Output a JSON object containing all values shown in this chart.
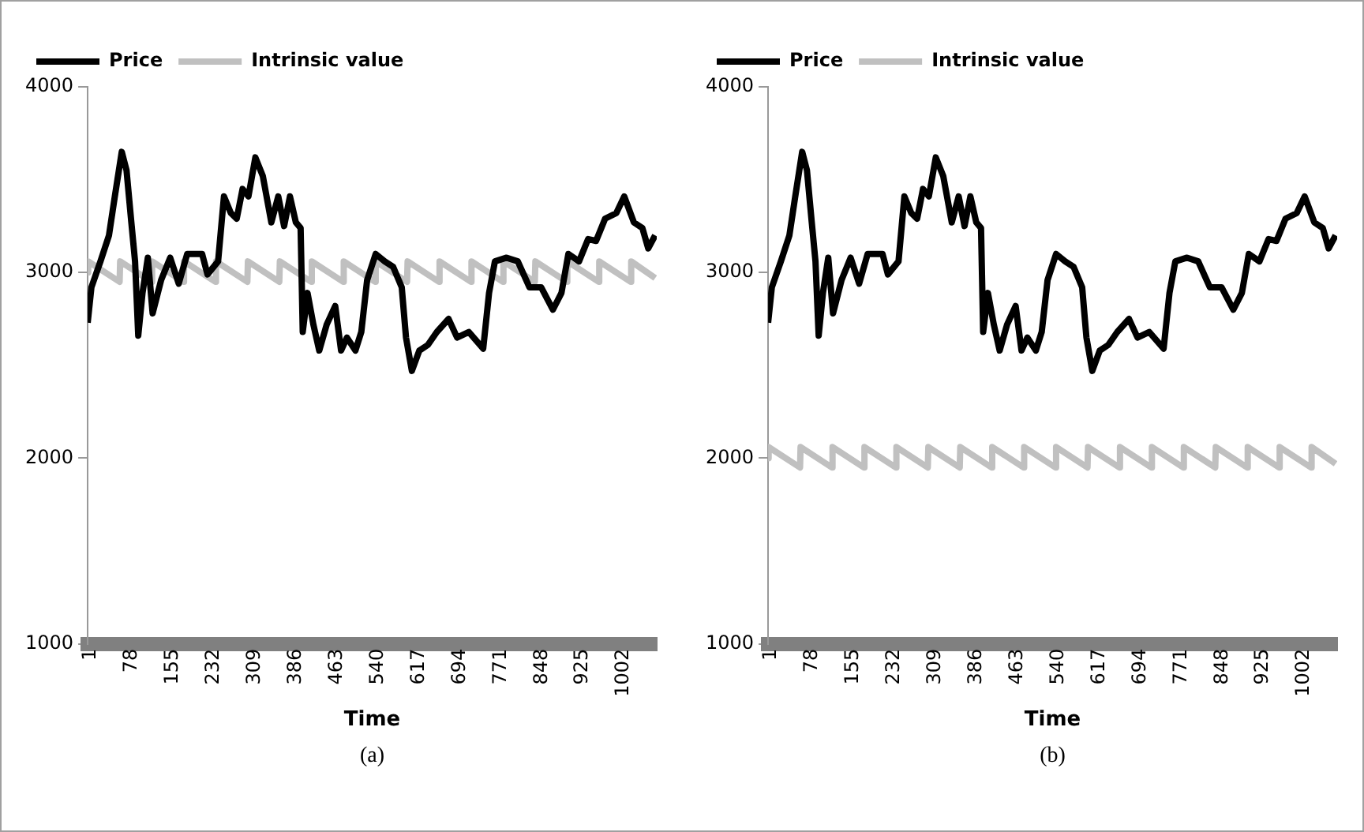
{
  "chart_data": [
    {
      "type": "line",
      "xlabel": "Time",
      "annotations": [
        "(a)"
      ],
      "legend": "top",
      "grid": false,
      "marker": "none",
      "line_style": "solid",
      "xlim": [
        1,
        1070
      ],
      "xticks": [
        1,
        78,
        155,
        232,
        309,
        386,
        463,
        540,
        617,
        694,
        771,
        848,
        925,
        1002
      ],
      "ylim": [
        1000,
        4000
      ],
      "yticks": [
        1000,
        2000,
        3000,
        4000
      ],
      "series": [
        {
          "name": "Price",
          "color": "#000000",
          "x": [
            1,
            8,
            25,
            41,
            52,
            65,
            74,
            83,
            90,
            96,
            104,
            114,
            123,
            139,
            156,
            172,
            188,
            216,
            226,
            246,
            257,
            270,
            281,
            292,
            303,
            316,
            330,
            346,
            359,
            370,
            381,
            392,
            401,
            405,
            414,
            425,
            436,
            450,
            466,
            477,
            488,
            504,
            515,
            526,
            542,
            559,
            575,
            591,
            599,
            610,
            624,
            640,
            657,
            679,
            695,
            717,
            744,
            755,
            766,
            788,
            809,
            831,
            853,
            875,
            891,
            904,
            924,
            941,
            956,
            973,
            994,
            1009,
            1027,
            1043,
            1054,
            1067
          ],
          "values": [
            2730,
            2920,
            3060,
            3200,
            3410,
            3650,
            3550,
            3270,
            3060,
            2660,
            2890,
            3080,
            2780,
            2960,
            3080,
            2940,
            3100,
            3100,
            2990,
            3060,
            3410,
            3320,
            3290,
            3450,
            3410,
            3620,
            3520,
            3270,
            3410,
            3250,
            3410,
            3270,
            3240,
            2680,
            2890,
            2720,
            2580,
            2720,
            2820,
            2580,
            2650,
            2580,
            2680,
            2960,
            3100,
            3060,
            3030,
            2920,
            2650,
            2470,
            2580,
            2610,
            2680,
            2750,
            2650,
            2680,
            2590,
            2890,
            3060,
            3080,
            3060,
            2920,
            2920,
            2800,
            2890,
            3100,
            3060,
            3180,
            3170,
            3290,
            3320,
            3410,
            3270,
            3240,
            3130,
            3200
          ]
        },
        {
          "name": "Intrinsic value",
          "color": "#c0c0c0",
          "x": [
            1,
            2,
            61,
            62,
            121,
            122,
            181,
            182,
            241,
            242,
            301,
            302,
            361,
            362,
            421,
            422,
            481,
            482,
            541,
            542,
            601,
            602,
            661,
            662,
            721,
            722,
            781,
            782,
            841,
            842,
            901,
            902,
            961,
            962,
            1021,
            1022,
            1067
          ],
          "values": [
            3000,
            3060,
            2950,
            3060,
            2950,
            3060,
            2950,
            3060,
            2950,
            3060,
            2950,
            3060,
            2950,
            3060,
            2950,
            3060,
            2950,
            3060,
            2950,
            3060,
            2950,
            3060,
            2950,
            3060,
            2950,
            3060,
            2950,
            3060,
            2950,
            3060,
            2950,
            3060,
            2950,
            3060,
            2950,
            3060,
            2970
          ]
        }
      ]
    },
    {
      "type": "line",
      "xlabel": "Time",
      "annotations": [
        "(b)"
      ],
      "legend": "top",
      "grid": false,
      "marker": "none",
      "line_style": "solid",
      "xlim": [
        1,
        1070
      ],
      "xticks": [
        1,
        78,
        155,
        232,
        309,
        386,
        463,
        540,
        617,
        694,
        771,
        848,
        925,
        1002
      ],
      "ylim": [
        1000,
        4000
      ],
      "yticks": [
        1000,
        2000,
        3000,
        4000
      ],
      "series": [
        {
          "name": "Price",
          "color": "#000000",
          "x": [
            1,
            8,
            25,
            41,
            52,
            65,
            74,
            83,
            90,
            96,
            104,
            114,
            123,
            139,
            156,
            172,
            188,
            216,
            226,
            246,
            257,
            270,
            281,
            292,
            303,
            316,
            330,
            346,
            359,
            370,
            381,
            392,
            401,
            405,
            414,
            425,
            436,
            450,
            466,
            477,
            488,
            504,
            515,
            526,
            542,
            559,
            575,
            591,
            599,
            610,
            624,
            640,
            657,
            679,
            695,
            717,
            744,
            755,
            766,
            788,
            809,
            831,
            853,
            875,
            891,
            904,
            924,
            941,
            956,
            973,
            994,
            1009,
            1027,
            1043,
            1054,
            1067
          ],
          "values": [
            2730,
            2920,
            3060,
            3200,
            3410,
            3650,
            3550,
            3270,
            3060,
            2660,
            2890,
            3080,
            2780,
            2960,
            3080,
            2940,
            3100,
            3100,
            2990,
            3060,
            3410,
            3320,
            3290,
            3450,
            3410,
            3620,
            3520,
            3270,
            3410,
            3250,
            3410,
            3270,
            3240,
            2680,
            2890,
            2720,
            2580,
            2720,
            2820,
            2580,
            2650,
            2580,
            2680,
            2960,
            3100,
            3060,
            3030,
            2920,
            2650,
            2470,
            2580,
            2610,
            2680,
            2750,
            2650,
            2680,
            2590,
            2890,
            3060,
            3080,
            3060,
            2920,
            2920,
            2800,
            2890,
            3100,
            3060,
            3180,
            3170,
            3290,
            3320,
            3410,
            3270,
            3240,
            3130,
            3200
          ]
        },
        {
          "name": "Intrinsic value",
          "color": "#c0c0c0",
          "x": [
            1,
            2,
            61,
            62,
            121,
            122,
            181,
            182,
            241,
            242,
            301,
            302,
            361,
            362,
            421,
            422,
            481,
            482,
            541,
            542,
            601,
            602,
            661,
            662,
            721,
            722,
            781,
            782,
            841,
            842,
            901,
            902,
            961,
            962,
            1021,
            1022,
            1067
          ],
          "values": [
            2000,
            2060,
            1950,
            2060,
            1950,
            2060,
            1950,
            2060,
            1950,
            2060,
            1950,
            2060,
            1950,
            2060,
            1950,
            2060,
            1950,
            2060,
            1950,
            2060,
            1950,
            2060,
            1950,
            2060,
            1950,
            2060,
            1950,
            2060,
            1950,
            2060,
            1950,
            2060,
            1950,
            2060,
            1950,
            2060,
            1970
          ]
        }
      ]
    }
  ]
}
